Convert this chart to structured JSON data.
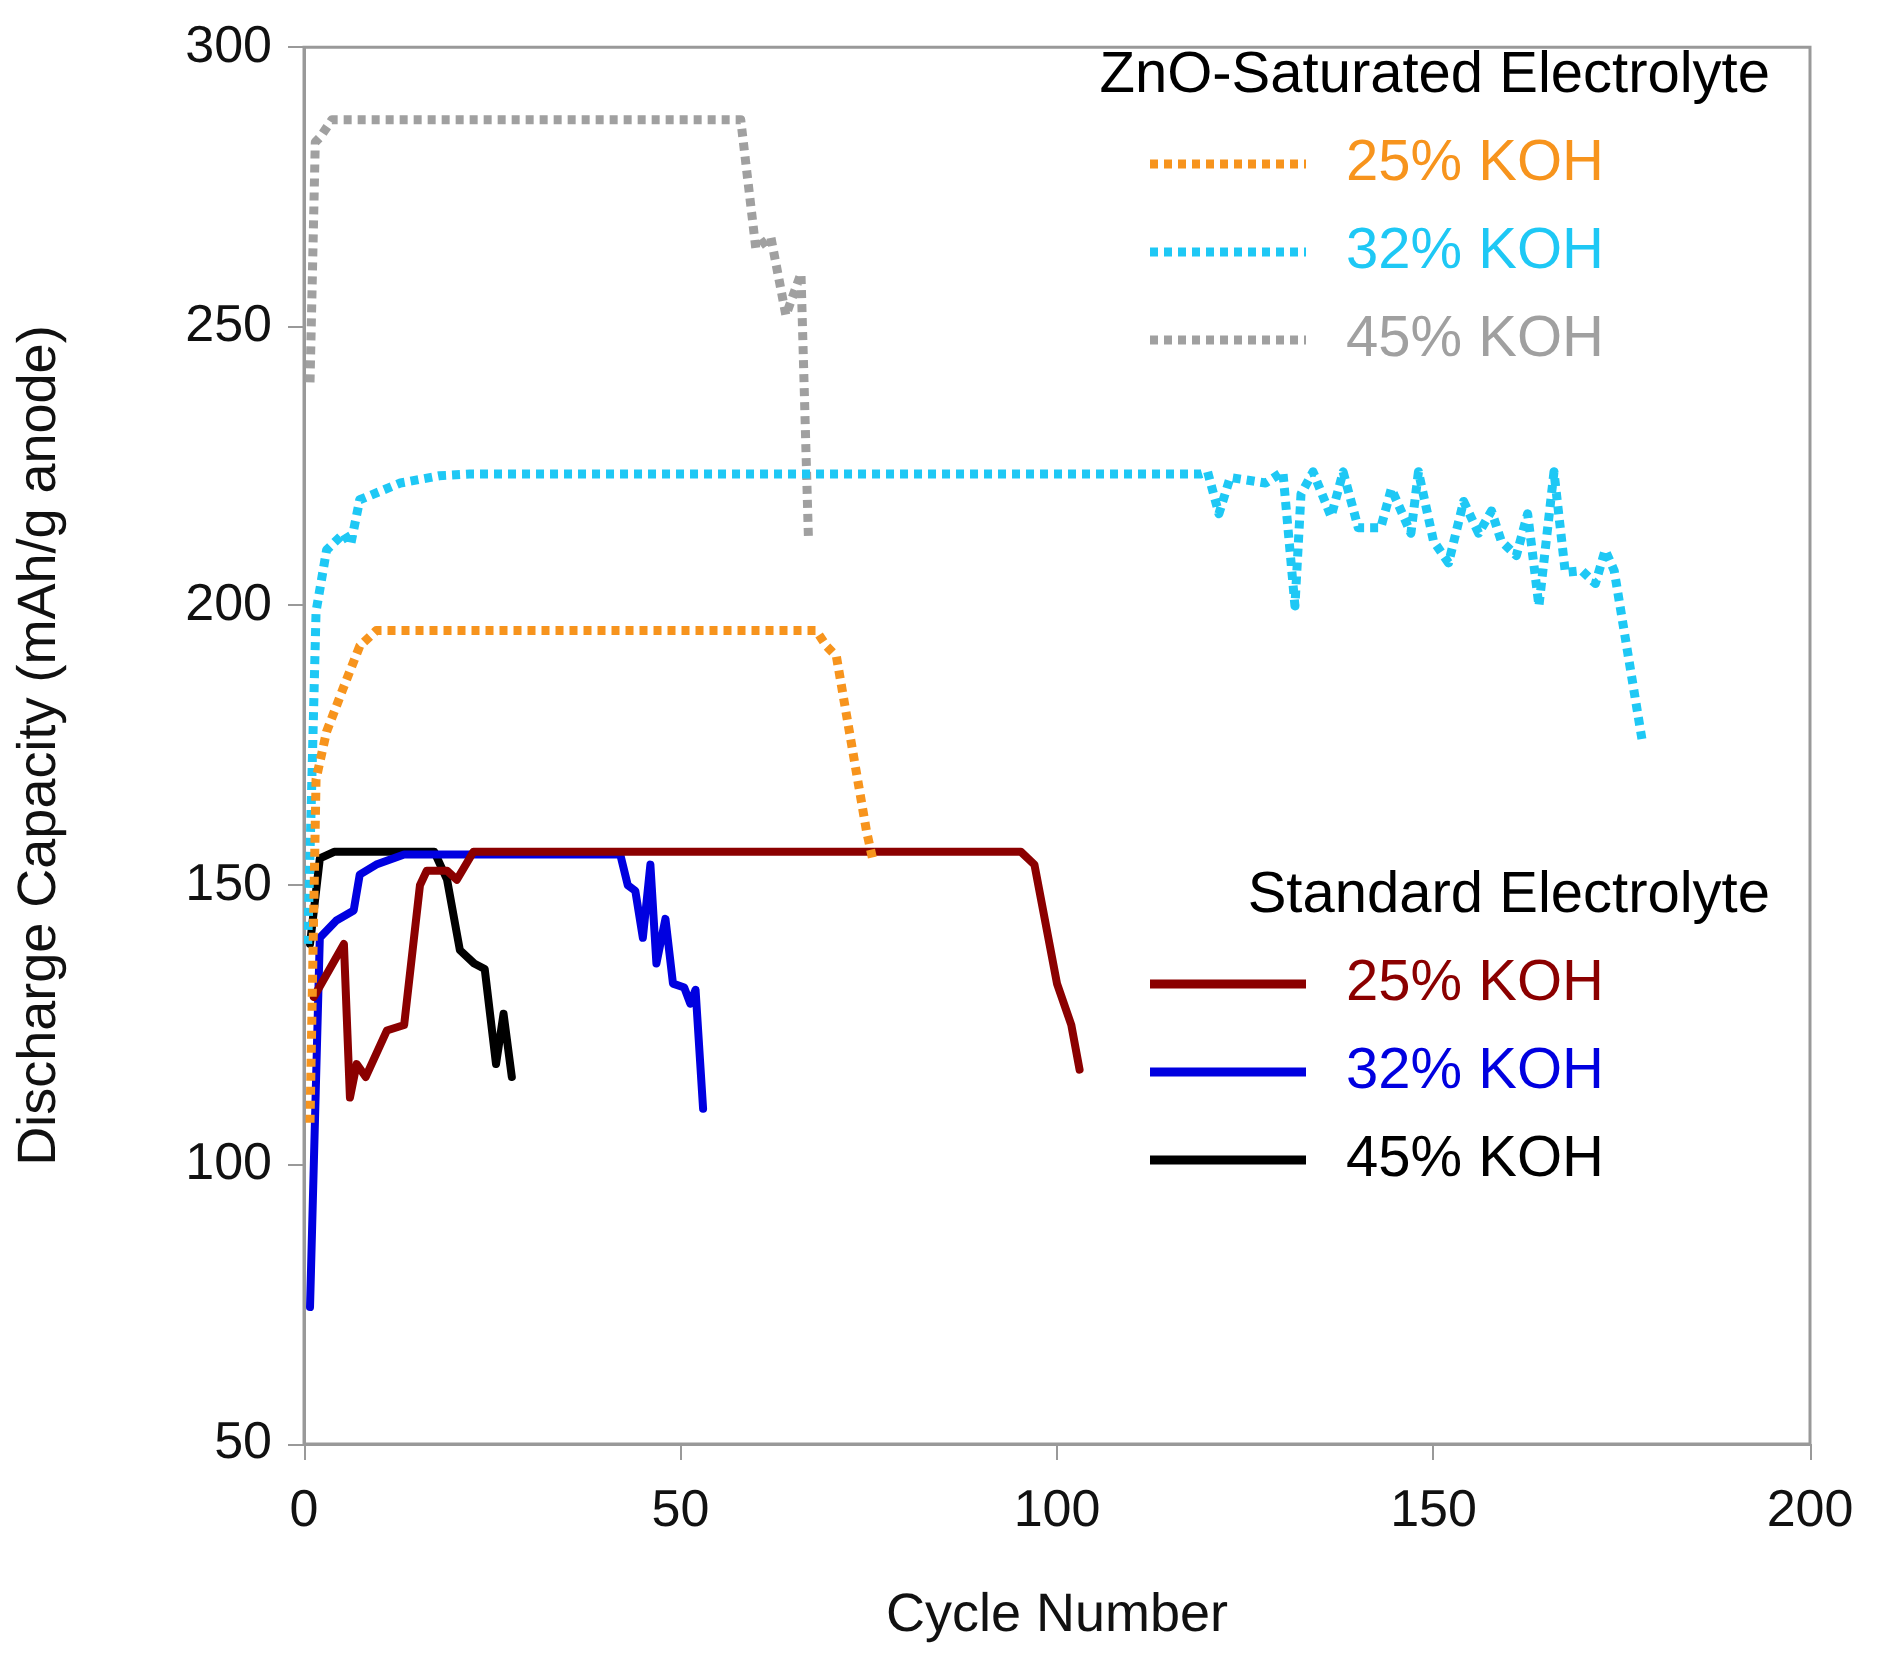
{
  "chart_data": {
    "type": "line",
    "xlabel": "Cycle Number",
    "ylabel": "Discharge Capacity (mAh/g anode)",
    "xlim": [
      0,
      200
    ],
    "xticks": [
      0,
      50,
      100,
      150,
      200
    ],
    "ylim": [
      50,
      300
    ],
    "yticks": [
      50,
      100,
      150,
      200,
      250,
      300
    ],
    "grid": false,
    "legend": "right",
    "marker": "none",
    "annotations": [
      "ZnO-Saturated Electrolyte",
      "Standard Electrolyte"
    ],
    "series": [
      {
        "name": "25% KOH",
        "color": "#f7941d",
        "line_style": "dotted",
        "x": [
          0.8,
          1.6,
          3,
          5.3,
          7.4,
          9.6,
          68,
          69.4,
          70.7,
          74.7,
          75.5
        ],
        "values": [
          107.5,
          169,
          177.5,
          185.6,
          192.8,
          195.6,
          195.6,
          192.8,
          191,
          159.7,
          154.8
        ]
      },
      {
        "name": "32% KOH",
        "color": "#1ec8f5",
        "line_style": "dotted",
        "x": [
          0.5,
          1.6,
          3,
          5.3,
          6.2,
          7.4,
          12.8,
          18,
          22,
          119,
          120,
          121.5,
          123,
          127.7,
          130,
          131.6,
          132.4,
          134,
          136.4,
          138,
          140,
          143,
          144.4,
          147,
          148,
          150,
          152,
          154,
          156,
          157.7,
          159,
          161,
          162.5,
          164,
          166,
          167.5,
          169.7,
          171.5,
          172.8,
          174,
          177.7
        ],
        "values": [
          139.5,
          199,
          210,
          213,
          211,
          219,
          222,
          223.3,
          223.6,
          223.6,
          224,
          216.5,
          223,
          222,
          224,
          200,
          220,
          224,
          216,
          224,
          214,
          214,
          221,
          213,
          224,
          211.6,
          207.7,
          218.7,
          213,
          217,
          211.6,
          209,
          216.5,
          200,
          224,
          206,
          206.3,
          204,
          210,
          206.3,
          176
        ]
      },
      {
        "name": "45% KOH",
        "color": "#a0a0a0",
        "line_style": "dotted",
        "x": [
          0.8,
          1.5,
          2.2,
          3.7,
          58,
          60,
          62,
          64,
          66,
          67
        ],
        "values": [
          240,
          283,
          284,
          287,
          287,
          264,
          266,
          252,
          259.5,
          211.6
        ]
      },
      {
        "name": "25% KOH",
        "color": "#8b0000",
        "line_style": "solid",
        "x": [
          1.3,
          5.3,
          6.1,
          7,
          8.2,
          11,
          13.3,
          15.4,
          16.3,
          19,
          20.3,
          22.5,
          95.2,
          97,
          100,
          101.9,
          103
        ],
        "values": [
          130,
          139.5,
          112,
          118,
          115.7,
          124,
          125,
          150,
          152.6,
          152.6,
          151,
          156,
          156,
          153.7,
          132.4,
          125,
          117
        ]
      },
      {
        "name": "32% KOH",
        "color": "#0000e0",
        "line_style": "solid",
        "x": [
          0.8,
          2.1,
          4.3,
          6.6,
          7.4,
          9.6,
          13.3,
          42,
          43,
          44,
          45,
          46,
          46.8,
          48,
          49,
          50.5,
          51.3,
          52,
          53
        ],
        "values": [
          74.5,
          140.6,
          143.7,
          145.5,
          151.9,
          153.7,
          155.5,
          155.5,
          150,
          149,
          140.6,
          153.7,
          136,
          144,
          132.4,
          131.7,
          128.8,
          131.3,
          110
        ]
      },
      {
        "name": "45% KOH",
        "color": "#000000",
        "line_style": "solid",
        "x": [
          0.8,
          2.1,
          4,
          17.3,
          19,
          20.7,
          22.6,
          24,
          25.5,
          26.5,
          27.6
        ],
        "values": [
          139.5,
          154.8,
          156,
          156,
          151,
          138.4,
          136,
          135,
          118,
          127,
          115.7
        ]
      }
    ]
  }
}
